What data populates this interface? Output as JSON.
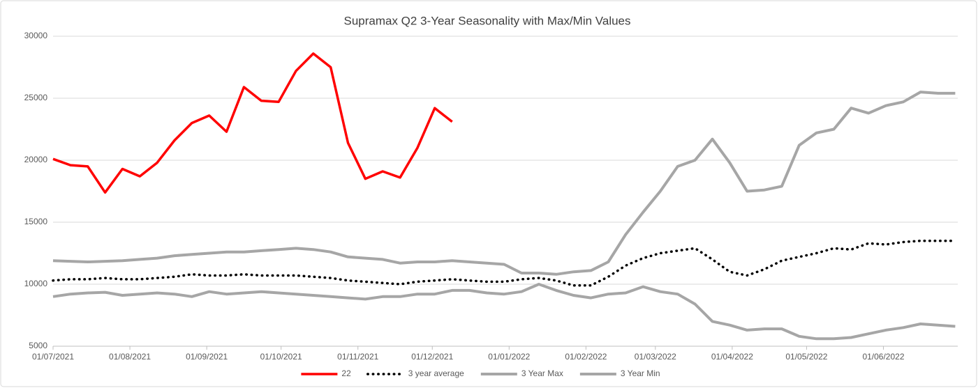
{
  "chart_data": {
    "type": "line",
    "title": "Supramax Q2 3-Year Seasonality with Max/Min Values",
    "x": [
      "01/07/2021",
      "08/07/2021",
      "15/07/2021",
      "22/07/2021",
      "29/07/2021",
      "05/08/2021",
      "12/08/2021",
      "19/08/2021",
      "26/08/2021",
      "02/09/2021",
      "09/09/2021",
      "16/09/2021",
      "23/09/2021",
      "30/09/2021",
      "07/10/2021",
      "14/10/2021",
      "21/10/2021",
      "28/10/2021",
      "04/11/2021",
      "11/11/2021",
      "18/11/2021",
      "25/11/2021",
      "02/12/2021",
      "09/12/2021",
      "16/12/2021",
      "23/12/2021",
      "30/12/2021",
      "06/01/2022",
      "13/01/2022",
      "20/01/2022",
      "27/01/2022",
      "03/02/2022",
      "10/02/2022",
      "17/02/2022",
      "24/02/2022",
      "03/03/2022",
      "10/03/2022",
      "17/03/2022",
      "24/03/2022",
      "31/03/2022",
      "07/04/2022",
      "14/04/2022",
      "21/04/2022",
      "28/04/2022",
      "05/05/2022",
      "12/05/2022",
      "19/05/2022",
      "26/05/2022",
      "02/06/2022",
      "09/06/2022",
      "16/06/2022",
      "23/06/2022",
      "30/06/2022"
    ],
    "xlim": [
      "01/07/2021",
      "01/07/2022"
    ],
    "xticks": [
      "01/07/2021",
      "01/08/2021",
      "01/09/2021",
      "01/10/2021",
      "01/11/2021",
      "01/12/2021",
      "01/01/2022",
      "01/02/2022",
      "01/03/2022",
      "01/04/2022",
      "01/05/2022",
      "01/06/2022"
    ],
    "ylim": [
      5000,
      30000
    ],
    "yticks": [
      5000,
      10000,
      15000,
      20000,
      25000,
      30000
    ],
    "grid": true,
    "legend": "bottom",
    "series": [
      {
        "name": "22",
        "color": "#ff0000",
        "style": "solid",
        "values": [
          20100,
          19600,
          19500,
          17400,
          19300,
          18700,
          19800,
          21600,
          23000,
          23600,
          22300,
          25900,
          24800,
          24700,
          27200,
          28600,
          27500,
          21400,
          18500,
          19100,
          18600,
          21000,
          24200,
          23100,
          null,
          null,
          null,
          null,
          null,
          null,
          null,
          null,
          null,
          null,
          null,
          null,
          null,
          null,
          null,
          null,
          null,
          null,
          null,
          null,
          null,
          null,
          null,
          null,
          null,
          null,
          null,
          null,
          null
        ]
      },
      {
        "name": "3 year average",
        "color": "#000000",
        "style": "dotted",
        "values": [
          10300,
          10400,
          10400,
          10500,
          10400,
          10400,
          10500,
          10600,
          10800,
          10700,
          10700,
          10800,
          10700,
          10700,
          10700,
          10600,
          10500,
          10300,
          10200,
          10100,
          10000,
          10200,
          10300,
          10400,
          10300,
          10200,
          10200,
          10400,
          10500,
          10300,
          9900,
          9900,
          10600,
          11500,
          12100,
          12500,
          12700,
          12900,
          12000,
          11000,
          10700,
          11200,
          11900,
          12200,
          12500,
          12900,
          12800,
          13300,
          13200,
          13400,
          13500,
          13500,
          13500
        ]
      },
      {
        "name": "3 Year Max",
        "color": "#a6a6a6",
        "style": "solid",
        "values": [
          11900,
          11850,
          11800,
          11850,
          11900,
          12000,
          12100,
          12300,
          12400,
          12500,
          12600,
          12600,
          12700,
          12800,
          12900,
          12800,
          12600,
          12200,
          12100,
          12000,
          11700,
          11800,
          11800,
          11900,
          11800,
          11700,
          11600,
          10900,
          10900,
          10800,
          11000,
          11100,
          11800,
          14000,
          15800,
          17500,
          19500,
          20000,
          21700,
          19800,
          17500,
          17600,
          17900,
          21200,
          22200,
          22500,
          24200,
          23800,
          24400,
          24700,
          25500,
          25400,
          25400
        ]
      },
      {
        "name": "3 Year Min",
        "color": "#a6a6a6",
        "style": "solid",
        "values": [
          9000,
          9200,
          9300,
          9350,
          9100,
          9200,
          9300,
          9200,
          9000,
          9400,
          9200,
          9300,
          9400,
          9300,
          9200,
          9100,
          9000,
          8900,
          8800,
          9000,
          9000,
          9200,
          9200,
          9500,
          9500,
          9300,
          9200,
          9400,
          10000,
          9500,
          9100,
          8900,
          9200,
          9300,
          9800,
          9400,
          9200,
          8400,
          7000,
          6700,
          6300,
          6400,
          6400,
          5800,
          5600,
          5600,
          5700,
          6000,
          6300,
          6500,
          6800,
          6700,
          6600
        ]
      }
    ]
  }
}
